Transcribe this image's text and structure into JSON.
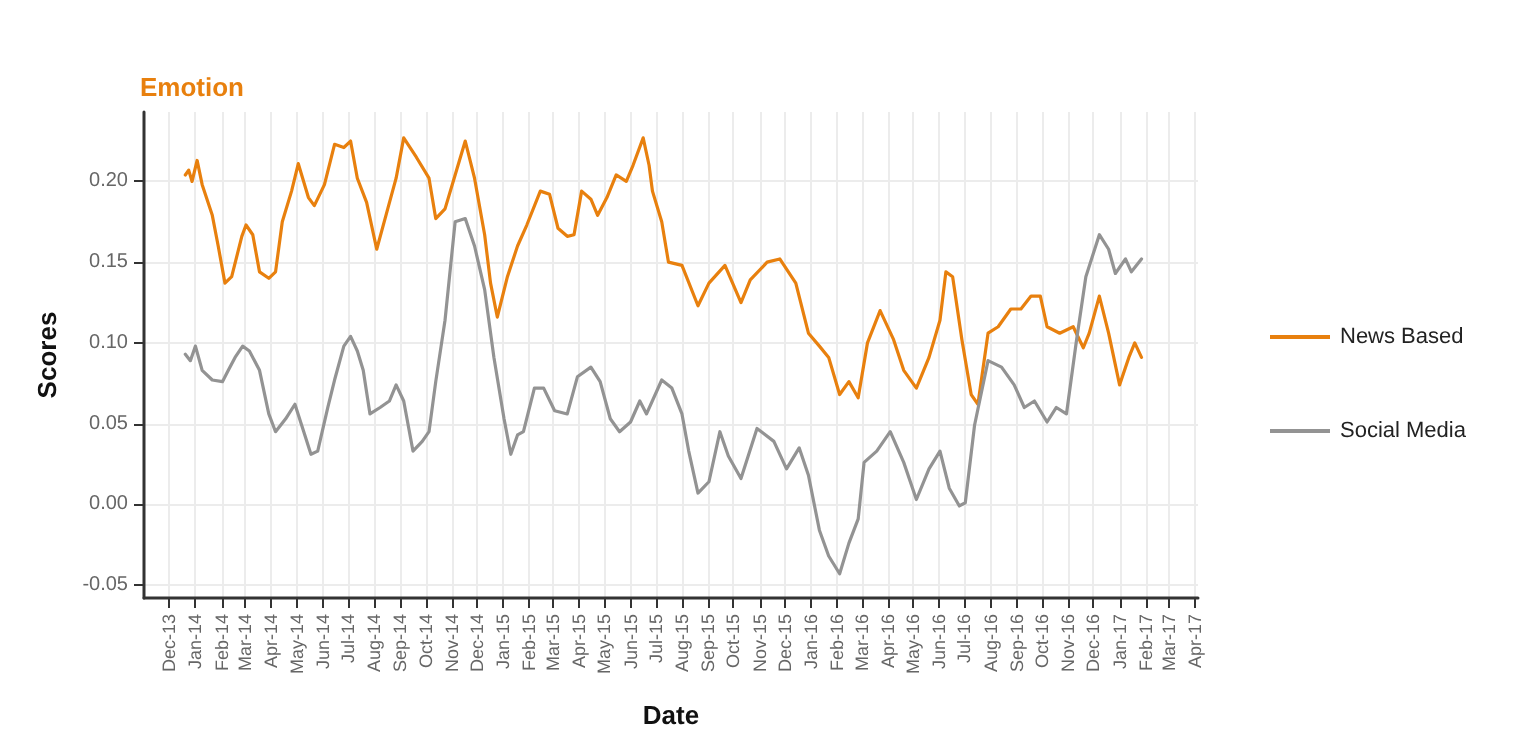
{
  "chart_data": {
    "type": "line",
    "title": "Emotion",
    "xlabel": "Date",
    "ylabel": "Scores",
    "xlim": [
      "2013-11-01",
      "2017-04-04"
    ],
    "ylim": [
      -0.058,
      0.243
    ],
    "yticks": [
      -0.05,
      {
        "value": 0,
        "label": "0.00"
      },
      0.05,
      {
        "value": 0.1,
        "label": "0.10"
      },
      0.15,
      {
        "value": 0.2,
        "label": "0.20"
      }
    ],
    "xticks": [
      {
        "value": "2013-12",
        "label": "Dec-13"
      },
      {
        "value": "2014-01",
        "label": "Jan-14"
      },
      {
        "value": "2014-02",
        "label": "Feb-14"
      },
      {
        "value": "2014-03",
        "label": "Mar-14"
      },
      {
        "value": "2014-04",
        "label": "Apr-14"
      },
      {
        "value": "2014-05",
        "label": "May-14"
      },
      {
        "value": "2014-06",
        "label": "Jun-14"
      },
      {
        "value": "2014-07",
        "label": "Jul-14"
      },
      {
        "value": "2014-08",
        "label": "Aug-14"
      },
      {
        "value": "2014-09",
        "label": "Sep-14"
      },
      {
        "value": "2014-10",
        "label": "Oct-14"
      },
      {
        "value": "2014-11",
        "label": "Nov-14"
      },
      {
        "value": "2014-12",
        "label": "Dec-14"
      },
      {
        "value": "2015-01",
        "label": "Jan-15"
      },
      {
        "value": "2015-02",
        "label": "Feb-15"
      },
      {
        "value": "2015-03",
        "label": "Mar-15"
      },
      {
        "value": "2015-04",
        "label": "Apr-15"
      },
      {
        "value": "2015-05",
        "label": "May-15"
      },
      {
        "value": "2015-06",
        "label": "Jun-15"
      },
      {
        "value": "2015-07",
        "label": "Jul-15"
      },
      {
        "value": "2015-08",
        "label": "Aug-15"
      },
      {
        "value": "2015-09",
        "label": "Sep-15"
      },
      {
        "value": "2015-10",
        "label": "Oct-15"
      },
      {
        "value": "2015-11",
        "label": "Nov-15"
      },
      {
        "value": "2015-12",
        "label": "Dec-15"
      },
      {
        "value": "2016-01",
        "label": "Jan-16"
      },
      {
        "value": "2016-02",
        "label": "Feb-16"
      },
      {
        "value": "2016-03",
        "label": "Mar-16"
      },
      {
        "value": "2016-04",
        "label": "Apr-16"
      },
      {
        "value": "2016-05",
        "label": "May-16"
      },
      {
        "value": "2016-06",
        "label": "Jun-16"
      },
      {
        "value": "2016-07",
        "label": "Jul-16"
      },
      {
        "value": "2016-08",
        "label": "Aug-16"
      },
      {
        "value": "2016-09",
        "label": "Sep-16"
      },
      {
        "value": "2016-10",
        "label": "Oct-16"
      },
      {
        "value": "2016-11",
        "label": "Nov-16"
      },
      {
        "value": "2016-12",
        "label": "Dec-16"
      },
      {
        "value": "2017-01",
        "label": "Jan-17"
      },
      {
        "value": "2017-02",
        "label": "Feb-17"
      },
      {
        "value": "2017-03",
        "label": "Mar-17"
      },
      {
        "value": "2017-04",
        "label": "Apr-17"
      }
    ],
    "grid": true,
    "legend": "right",
    "marker": "none",
    "line_style": "solid",
    "series": [
      {
        "name": "News Based",
        "color": "#e8800e",
        "x": [
          "2013-12-20",
          "2013-12-24",
          "2013-12-28",
          "2014-01-03",
          "2014-01-09",
          "2014-01-21",
          "2014-01-28",
          "2014-02-05",
          "2014-02-13",
          "2014-02-25",
          "2014-03-02",
          "2014-03-10",
          "2014-03-18",
          "2014-03-29",
          "2014-04-06",
          "2014-04-14",
          "2014-04-25",
          "2014-05-03",
          "2014-05-15",
          "2014-05-22",
          "2014-06-03",
          "2014-06-15",
          "2014-06-26",
          "2014-07-04",
          "2014-07-12",
          "2014-07-23",
          "2014-08-04",
          "2014-08-16",
          "2014-08-27",
          "2014-09-05",
          "2014-09-20",
          "2014-10-05",
          "2014-10-13",
          "2014-10-24",
          "2014-11-05",
          "2014-11-17",
          "2014-11-28",
          "2014-12-10",
          "2014-12-17",
          "2014-12-25",
          "2015-01-06",
          "2015-01-18",
          "2015-01-29",
          "2015-02-14",
          "2015-02-25",
          "2015-03-07",
          "2015-03-18",
          "2015-03-26",
          "2015-04-04",
          "2015-04-15",
          "2015-04-23",
          "2015-05-04",
          "2015-05-15",
          "2015-05-27",
          "2015-06-04",
          "2015-06-16",
          "2015-06-23",
          "2015-06-27",
          "2015-07-08",
          "2015-07-16",
          "2015-08-01",
          "2015-08-20",
          "2015-09-02",
          "2015-09-21",
          "2015-10-10",
          "2015-10-21",
          "2015-11-10",
          "2015-11-25",
          "2015-12-14",
          "2015-12-29",
          "2016-01-11",
          "2016-01-22",
          "2016-02-04",
          "2016-02-15",
          "2016-02-26",
          "2016-03-08",
          "2016-03-23",
          "2016-04-08",
          "2016-04-20",
          "2016-05-05",
          "2016-05-20",
          "2016-06-02",
          "2016-06-09",
          "2016-06-17",
          "2016-06-28",
          "2016-07-09",
          "2016-07-17",
          "2016-07-29",
          "2016-08-10",
          "2016-08-25",
          "2016-09-06",
          "2016-09-18",
          "2016-09-29",
          "2016-10-07",
          "2016-10-22",
          "2016-11-07",
          "2016-11-19",
          "2016-11-26",
          "2016-12-08",
          "2016-12-19",
          "2017-01-01",
          "2017-01-12",
          "2017-01-19",
          "2017-01-27"
        ],
        "values": [
          0.204,
          0.207,
          0.2,
          0.213,
          0.198,
          0.179,
          0.16,
          0.137,
          0.141,
          0.166,
          0.173,
          0.167,
          0.144,
          0.14,
          0.144,
          0.175,
          0.194,
          0.211,
          0.19,
          0.185,
          0.198,
          0.223,
          0.221,
          0.225,
          0.202,
          0.187,
          0.158,
          0.181,
          0.202,
          0.227,
          0.215,
          0.202,
          0.177,
          0.183,
          0.204,
          0.225,
          0.202,
          0.167,
          0.137,
          0.116,
          0.141,
          0.16,
          0.173,
          0.194,
          0.192,
          0.171,
          0.166,
          0.167,
          0.194,
          0.189,
          0.179,
          0.19,
          0.204,
          0.2,
          0.21,
          0.227,
          0.21,
          0.194,
          0.175,
          0.15,
          0.148,
          0.123,
          0.137,
          0.148,
          0.125,
          0.139,
          0.15,
          0.152,
          0.137,
          0.106,
          0.098,
          0.091,
          0.068,
          0.076,
          0.066,
          0.1,
          0.12,
          0.102,
          0.083,
          0.072,
          0.091,
          0.114,
          0.144,
          0.141,
          0.102,
          0.068,
          0.062,
          0.106,
          0.11,
          0.121,
          0.121,
          0.129,
          0.129,
          0.11,
          0.106,
          0.11,
          0.097,
          0.106,
          0.129,
          0.106,
          0.074,
          0.091,
          0.1,
          0.091
        ]
      },
      {
        "name": "Social Media",
        "color": "#939393",
        "x": [
          "2013-12-20",
          "2013-12-26",
          "2014-01-01",
          "2014-01-09",
          "2014-01-21",
          "2014-02-02",
          "2014-02-09",
          "2014-02-17",
          "2014-02-26",
          "2014-03-06",
          "2014-03-18",
          "2014-03-29",
          "2014-04-06",
          "2014-04-18",
          "2014-04-29",
          "2014-05-07",
          "2014-05-18",
          "2014-05-26",
          "2014-06-07",
          "2014-06-15",
          "2014-06-26",
          "2014-07-04",
          "2014-07-12",
          "2014-07-19",
          "2014-07-27",
          "2014-08-08",
          "2014-08-19",
          "2014-08-27",
          "2014-09-05",
          "2014-09-16",
          "2014-09-27",
          "2014-10-05",
          "2014-10-13",
          "2014-10-24",
          "2014-11-05",
          "2014-11-17",
          "2014-11-28",
          "2014-12-10",
          "2014-12-21",
          "2015-01-02",
          "2015-01-10",
          "2015-01-18",
          "2015-01-25",
          "2015-02-07",
          "2015-02-18",
          "2015-03-03",
          "2015-03-18",
          "2015-03-30",
          "2015-04-15",
          "2015-04-26",
          "2015-05-08",
          "2015-05-19",
          "2015-06-01",
          "2015-06-12",
          "2015-06-20",
          "2015-07-08",
          "2015-07-20",
          "2015-08-01",
          "2015-08-09",
          "2015-08-20",
          "2015-09-02",
          "2015-09-15",
          "2015-09-25",
          "2015-10-10",
          "2015-10-29",
          "2015-11-18",
          "2015-12-03",
          "2015-12-18",
          "2015-12-29",
          "2016-01-11",
          "2016-01-22",
          "2016-02-04",
          "2016-02-15",
          "2016-02-26",
          "2016-03-04",
          "2016-03-19",
          "2016-04-04",
          "2016-04-20",
          "2016-05-05",
          "2016-05-20",
          "2016-06-02",
          "2016-06-13",
          "2016-06-25",
          "2016-07-02",
          "2016-07-13",
          "2016-07-29",
          "2016-08-14",
          "2016-08-29",
          "2016-09-10",
          "2016-09-22",
          "2016-10-07",
          "2016-10-18",
          "2016-10-30",
          "2016-11-11",
          "2016-11-22",
          "2016-12-08",
          "2016-12-19",
          "2016-12-27",
          "2017-01-08",
          "2017-01-15",
          "2017-01-27"
        ],
        "values": [
          0.093,
          0.089,
          0.098,
          0.083,
          0.077,
          0.076,
          0.083,
          0.091,
          0.098,
          0.095,
          0.083,
          0.056,
          0.045,
          0.053,
          0.062,
          0.049,
          0.031,
          0.033,
          0.06,
          0.077,
          0.098,
          0.104,
          0.095,
          0.083,
          0.056,
          0.06,
          0.064,
          0.074,
          0.064,
          0.033,
          0.039,
          0.045,
          0.076,
          0.114,
          0.175,
          0.177,
          0.16,
          0.133,
          0.091,
          0.053,
          0.031,
          0.043,
          0.045,
          0.072,
          0.072,
          0.058,
          0.056,
          0.079,
          0.085,
          0.076,
          0.053,
          0.045,
          0.051,
          0.064,
          0.056,
          0.077,
          0.072,
          0.056,
          0.033,
          0.007,
          0.014,
          0.045,
          0.03,
          0.016,
          0.047,
          0.039,
          0.022,
          0.035,
          0.018,
          -0.016,
          -0.032,
          -0.043,
          -0.024,
          -0.009,
          0.026,
          0.033,
          0.045,
          0.026,
          0.003,
          0.022,
          0.033,
          0.01,
          -0.001,
          0.001,
          0.049,
          0.089,
          0.085,
          0.074,
          0.06,
          0.064,
          0.051,
          0.06,
          0.056,
          0.102,
          0.141,
          0.167,
          0.158,
          0.143,
          0.152,
          0.144,
          0.152
        ]
      }
    ]
  }
}
